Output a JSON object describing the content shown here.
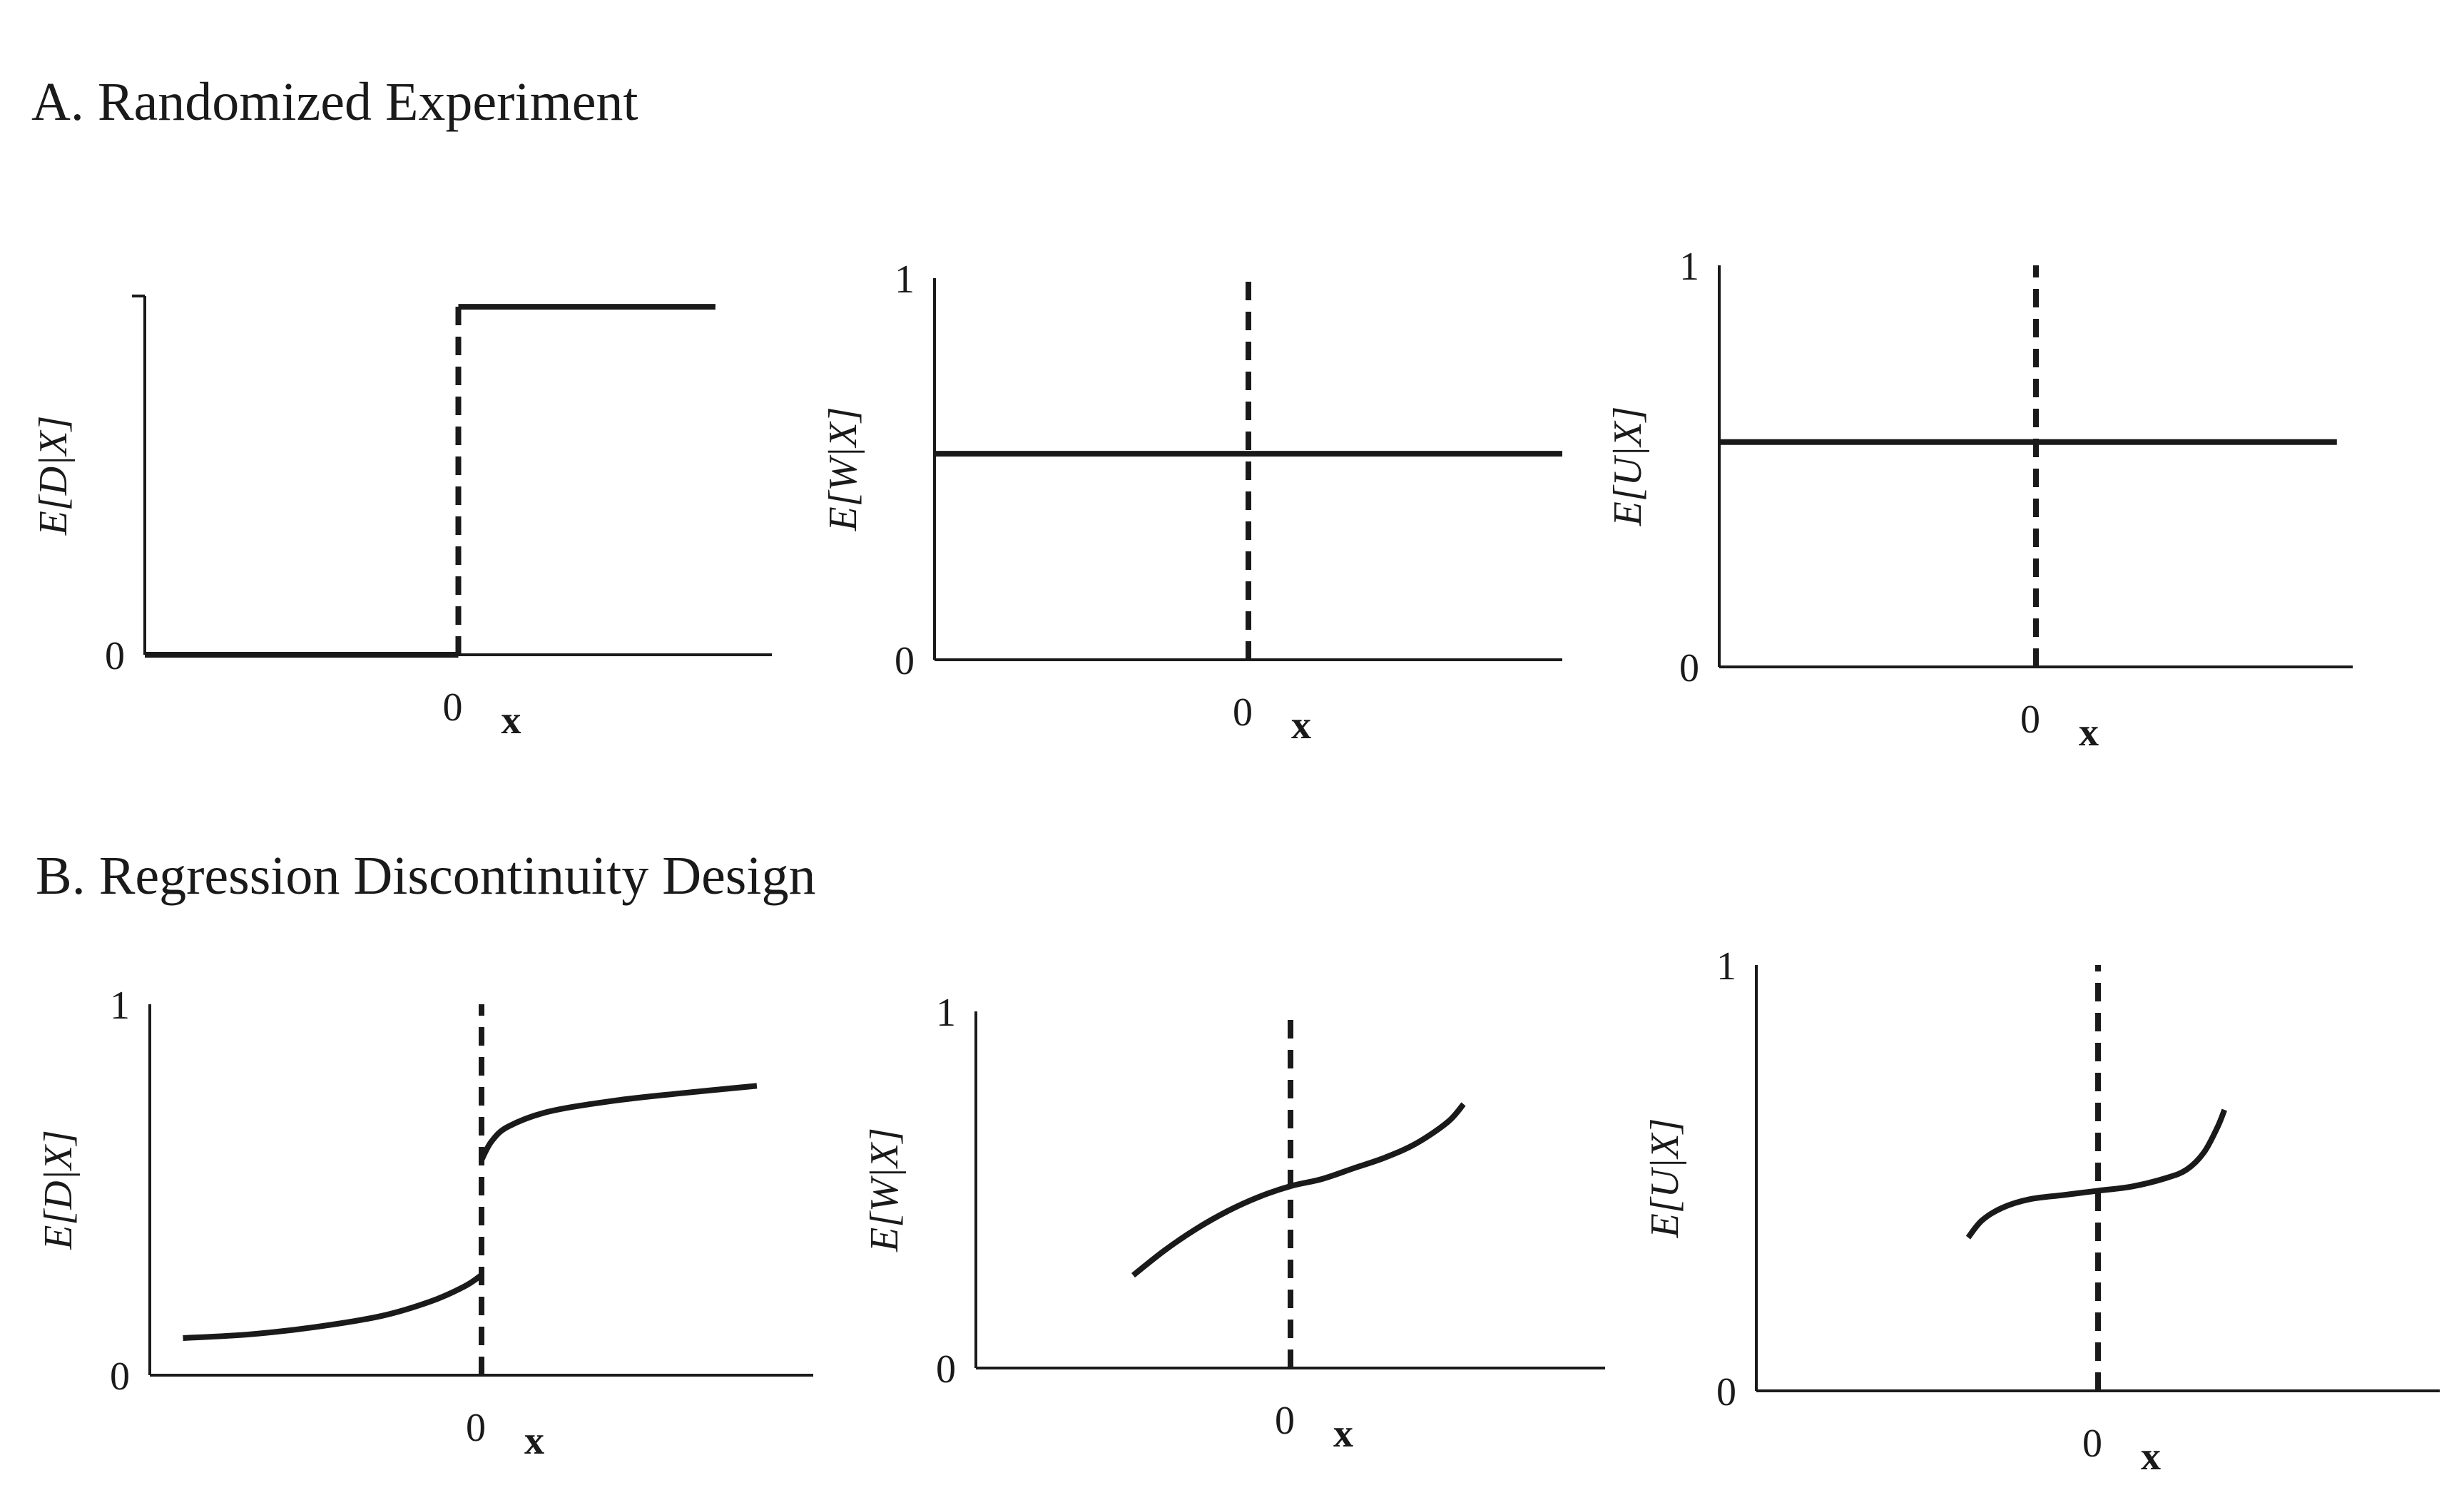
{
  "figure": {
    "panel_a_title": "A. Randomized Experiment",
    "panel_b_title": "B. Regression Discontinuity Design"
  },
  "chart_data": [
    {
      "type": "line",
      "panel": "A",
      "ylabel": "E[D|X]",
      "xlabel": "x",
      "x_tick": "0",
      "y_ticks": [
        "0"
      ],
      "has_top_tick": true,
      "xlim": [
        -1,
        1
      ],
      "ylim": [
        0,
        1
      ],
      "cutoff": 0,
      "series": [
        {
          "values": [
            [
              -1.0,
              0.0
            ],
            [
              0.0,
              0.0
            ]
          ]
        },
        {
          "values": [
            [
              0.0,
              0.97
            ],
            [
              0.82,
              0.97
            ]
          ]
        }
      ]
    },
    {
      "type": "line",
      "panel": "A",
      "ylabel": "E[W|X]",
      "xlabel": "x",
      "x_tick": "0",
      "y_ticks": [
        "0",
        "1"
      ],
      "xlim": [
        -1,
        1
      ],
      "ylim": [
        0,
        1
      ],
      "cutoff": 0,
      "series": [
        {
          "values": [
            [
              -1.0,
              0.54
            ],
            [
              1.0,
              0.54
            ]
          ]
        }
      ]
    },
    {
      "type": "line",
      "panel": "A",
      "ylabel": "E[U|X]",
      "xlabel": "x",
      "x_tick": "0",
      "y_ticks": [
        "0",
        "1"
      ],
      "xlim": [
        -1,
        1
      ],
      "ylim": [
        0,
        1
      ],
      "cutoff": 0,
      "series": [
        {
          "values": [
            [
              -1.0,
              0.56
            ],
            [
              0.95,
              0.56
            ]
          ]
        }
      ]
    },
    {
      "type": "line",
      "panel": "B",
      "ylabel": "E[D|X]",
      "xlabel": "x",
      "x_tick": "0",
      "y_ticks": [
        "0",
        "1"
      ],
      "xlim": [
        -1,
        1
      ],
      "ylim": [
        0,
        1
      ],
      "cutoff": 0,
      "series": [
        {
          "values": [
            [
              -0.9,
              0.1
            ],
            [
              -0.7,
              0.11
            ],
            [
              -0.5,
              0.13
            ],
            [
              -0.3,
              0.16
            ],
            [
              -0.15,
              0.2
            ],
            [
              -0.05,
              0.24
            ],
            [
              0.0,
              0.27
            ]
          ]
        },
        {
          "values": [
            [
              0.0,
              0.58
            ],
            [
              0.03,
              0.63
            ],
            [
              0.08,
              0.67
            ],
            [
              0.2,
              0.71
            ],
            [
              0.4,
              0.74
            ],
            [
              0.6,
              0.76
            ],
            [
              0.83,
              0.78
            ]
          ]
        }
      ]
    },
    {
      "type": "line",
      "panel": "B",
      "ylabel": "E[W|X]",
      "xlabel": "x",
      "x_tick": "0",
      "y_ticks": [
        "0",
        "1"
      ],
      "xlim": [
        -1,
        1
      ],
      "ylim": [
        0,
        1
      ],
      "cutoff": 0,
      "series": [
        {
          "values": [
            [
              -0.5,
              0.26
            ],
            [
              -0.4,
              0.33
            ],
            [
              -0.3,
              0.39
            ],
            [
              -0.2,
              0.44
            ],
            [
              -0.1,
              0.48
            ],
            [
              0.0,
              0.51
            ],
            [
              0.1,
              0.53
            ],
            [
              0.2,
              0.56
            ],
            [
              0.3,
              0.59
            ],
            [
              0.4,
              0.63
            ],
            [
              0.5,
              0.69
            ],
            [
              0.55,
              0.74
            ]
          ]
        }
      ]
    },
    {
      "type": "line",
      "panel": "B",
      "ylabel": "E[U|X]",
      "xlabel": "x",
      "x_tick": "0",
      "y_ticks": [
        "0",
        "1"
      ],
      "xlim": [
        -1,
        1
      ],
      "ylim": [
        0,
        1
      ],
      "cutoff": 0,
      "series": [
        {
          "values": [
            [
              -0.38,
              0.36
            ],
            [
              -0.34,
              0.4
            ],
            [
              -0.28,
              0.43
            ],
            [
              -0.2,
              0.45
            ],
            [
              -0.1,
              0.46
            ],
            [
              0.0,
              0.47
            ],
            [
              0.1,
              0.48
            ],
            [
              0.2,
              0.5
            ],
            [
              0.26,
              0.52
            ],
            [
              0.31,
              0.56
            ],
            [
              0.35,
              0.62
            ],
            [
              0.37,
              0.66
            ]
          ]
        }
      ]
    }
  ]
}
